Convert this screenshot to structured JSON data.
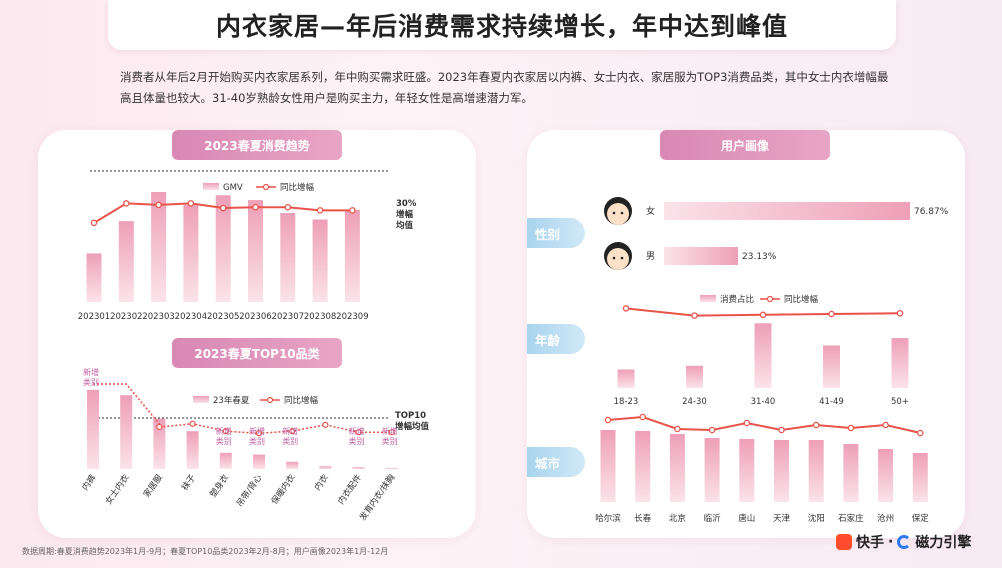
{
  "title": "内衣家居—年后消费需求持续增长，年中达到峰值",
  "intro": "消费者从年后2月开始购买内衣家居系列，年中购买需求旺盛。2023年春夏内衣家居以内裤、女士内衣、家居服为TOP3消费品类，其中女士内衣增幅最高且体量也较大。31-40岁熟龄女性用户是购买主力，年轻女性是高增速潜力军。",
  "footer_note": "数据周期:春夏消费趋势2023年1月-9月；春夏TOP10品类2023年2月-8月；用户画像2023年1月-12月",
  "brand": {
    "kuaishou": "快手",
    "sep": "·",
    "cili": "磁力引擎"
  },
  "colors": {
    "bar": "#f0b2c6",
    "line": "#e8534a",
    "pill": "#d888b4",
    "tag": "#a8d4ee"
  },
  "chart_data": [
    {
      "type": "bar",
      "title": "2023春夏消费趋势",
      "categories": [
        "202301",
        "202302",
        "202303",
        "202304",
        "202305",
        "202306",
        "202307",
        "202308",
        "202309"
      ],
      "series": [
        {
          "name": "GMV",
          "values": [
            30,
            50,
            68,
            60,
            66,
            63,
            55,
            51,
            57
          ]
        },
        {
          "name": "同比增幅",
          "values": [
            22,
            47,
            45,
            47,
            41,
            42,
            42,
            38,
            38
          ]
        }
      ],
      "annotation": "30%\n增幅\n均值",
      "avg_line": 41
    },
    {
      "type": "bar",
      "title": "2023春夏TOP10品类",
      "categories": [
        "内裤",
        "女士内衣",
        "家居服",
        "袜子",
        "塑身衣",
        "吊带/背心",
        "保暖内衣",
        "内衣",
        "内衣配件",
        "发育内衣/抹胸"
      ],
      "series": [
        {
          "name": "23年春夏",
          "values": [
            88,
            82,
            56,
            42,
            18,
            16,
            8,
            3,
            2,
            1
          ]
        },
        {
          "name": "同比增幅",
          "values": [
            null,
            null,
            41,
            44,
            37,
            35,
            37,
            43,
            36,
            36
          ]
        }
      ],
      "new_labels": [
        "新增类别",
        "新增类别",
        "新增类别",
        "新增类别",
        "新增类别",
        "新增类别"
      ],
      "annotation": "TOP10\n增幅均值"
    },
    {
      "type": "bar",
      "title": "用户画像",
      "sections": {
        "gender": {
          "label": "性别",
          "items": [
            {
              "name": "女",
              "value": 76.87,
              "label": "76.87%"
            },
            {
              "name": "男",
              "value": 23.13,
              "label": "23.13%"
            }
          ]
        },
        "age": {
          "label": "年龄",
          "categories": [
            "18-23",
            "24-30",
            "31-40",
            "41-49",
            "50+"
          ],
          "series": [
            {
              "name": "消费占比",
              "values": [
                10,
                12,
                35,
                23,
                27
              ]
            },
            {
              "name": "同比增幅",
              "values": [
                52,
                43,
                44,
                45,
                46
              ]
            }
          ]
        },
        "city": {
          "label": "城市",
          "categories": [
            "哈尔滨",
            "长春",
            "北京",
            "临沂",
            "唐山",
            "天津",
            "沈阳",
            "石家庄",
            "沧州",
            "保定"
          ],
          "series": [
            {
              "name": "消费占比",
              "values": [
                72,
                71,
                68,
                64,
                63,
                62,
                62,
                58,
                53,
                49
              ]
            },
            {
              "name": "同比增幅",
              "values": [
                80,
                83,
                71,
                70,
                77,
                70,
                75,
                72,
                75,
                67
              ]
            }
          ]
        }
      }
    }
  ]
}
